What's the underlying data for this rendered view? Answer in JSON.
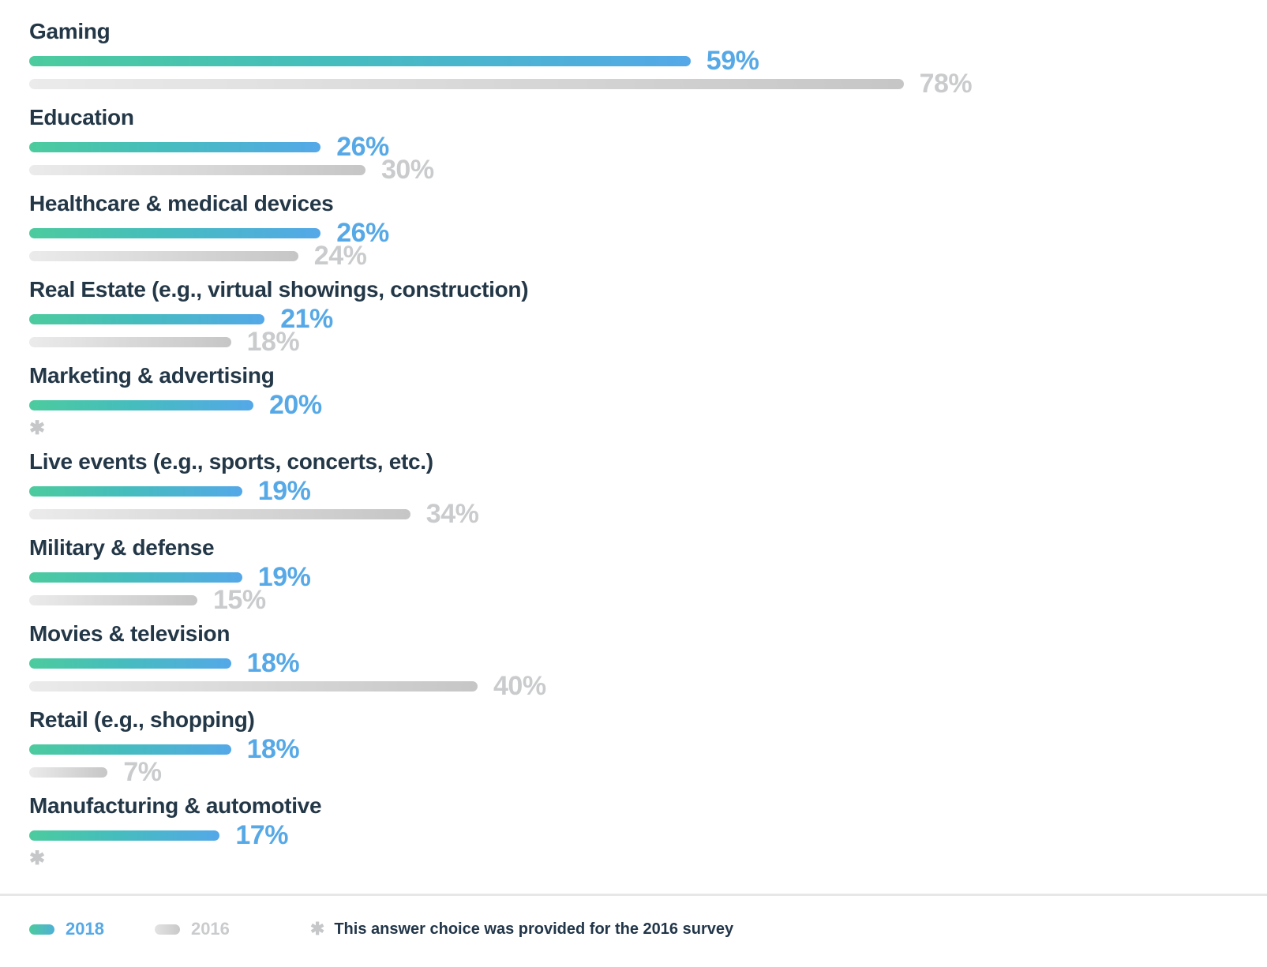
{
  "chart_data": {
    "type": "bar",
    "orientation": "horizontal",
    "value_unit": "percent",
    "xlim": [
      0,
      100
    ],
    "grid": false,
    "legend_position": "bottom",
    "categories": [
      "Gaming",
      "Education",
      "Healthcare & medical devices",
      "Real Estate (e.g., virtual showings, construction)",
      "Marketing & advertising",
      "Live events (e.g., sports, concerts, etc.)",
      "Military & defense",
      "Movies & television",
      "Retail (e.g., shopping)",
      "Manufacturing & automotive"
    ],
    "series": [
      {
        "name": "2018",
        "values": [
          59,
          26,
          26,
          21,
          20,
          19,
          19,
          18,
          18,
          17
        ]
      },
      {
        "name": "2016",
        "values": [
          78,
          30,
          24,
          18,
          null,
          34,
          15,
          40,
          7,
          null
        ]
      }
    ],
    "missing_value_marker": "✱",
    "footnote": "This answer choice was provided for the 2016 survey"
  },
  "rows": [
    {
      "label": "Gaming",
      "value_2018": 59,
      "value_2018_text": "59%",
      "value_2016": 78,
      "value_2016_text": "78%"
    },
    {
      "label": "Education",
      "value_2018": 26,
      "value_2018_text": "26%",
      "value_2016": 30,
      "value_2016_text": "30%"
    },
    {
      "label": "Healthcare & medical devices",
      "value_2018": 26,
      "value_2018_text": "26%",
      "value_2016": 24,
      "value_2016_text": "24%"
    },
    {
      "label": "Real Estate (e.g., virtual showings, construction)",
      "value_2018": 21,
      "value_2018_text": "21%",
      "value_2016": 18,
      "value_2016_text": "18%"
    },
    {
      "label": "Marketing & advertising",
      "value_2018": 20,
      "value_2018_text": "20%",
      "asterisk": "✱"
    },
    {
      "label": "Live events (e.g., sports, concerts, etc.)",
      "value_2018": 19,
      "value_2018_text": "19%",
      "value_2016": 34,
      "value_2016_text": "34%"
    },
    {
      "label": "Military & defense",
      "value_2018": 19,
      "value_2018_text": "19%",
      "value_2016": 15,
      "value_2016_text": "15%"
    },
    {
      "label": "Movies & television",
      "value_2018": 18,
      "value_2018_text": "18%",
      "value_2016": 40,
      "value_2016_text": "40%"
    },
    {
      "label": "Retail (e.g., shopping)",
      "value_2018": 18,
      "value_2018_text": "18%",
      "value_2016": 7,
      "value_2016_text": "7%"
    },
    {
      "label": "Manufacturing & automotive",
      "value_2018": 17,
      "value_2018_text": "17%",
      "asterisk": "✱"
    }
  ],
  "legend": {
    "year_2018_label": "2018",
    "year_2016_label": "2016",
    "footnote_marker": "✱",
    "footnote_text": "This answer choice was provided for the 2016 survey"
  },
  "colors": {
    "bar_2018_gradient_start": "#4ccb9e",
    "bar_2018_gradient_end": "#54a8e8",
    "value_2018_label": "#56a9e6",
    "bar_2016_gradient_start": "#ebebeb",
    "bar_2016_gradient_end": "#c6c6c6",
    "value_2016_label": "#c9cbcd",
    "category_label": "#233747",
    "footnote_text": "#223649",
    "asterisk": "#c5c7c9",
    "divider": "#e7e7e7"
  }
}
